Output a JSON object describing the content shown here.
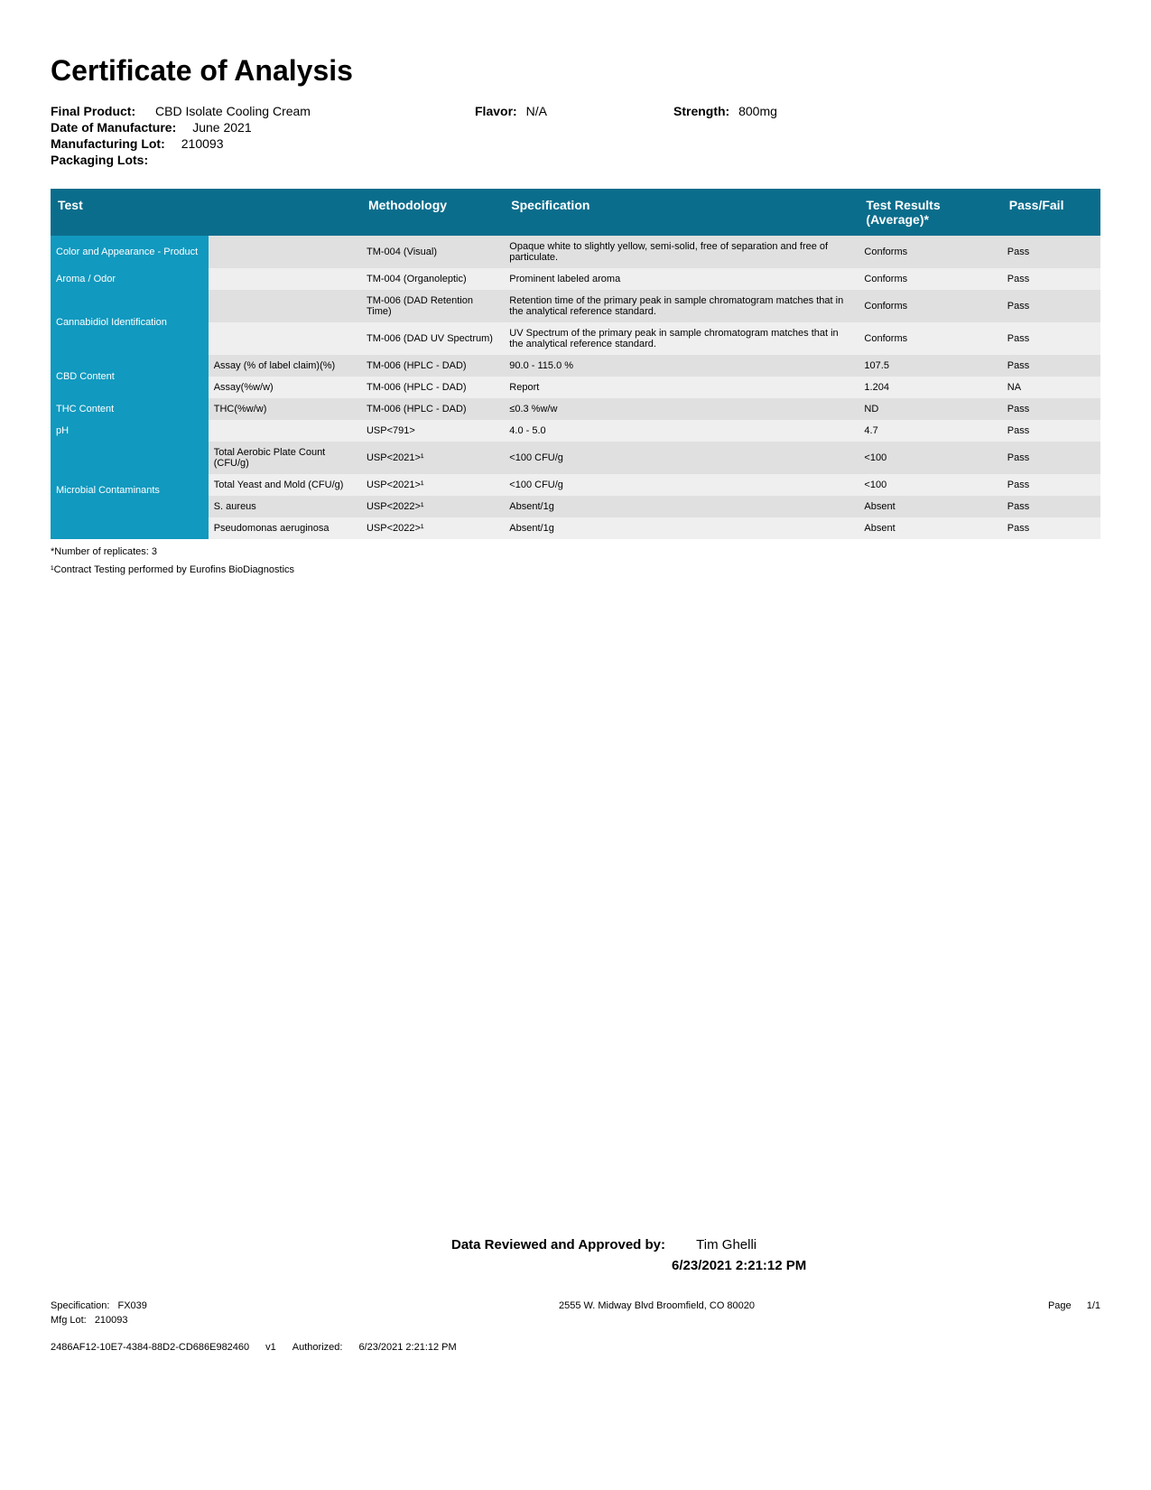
{
  "title": "Certificate of Analysis",
  "meta": {
    "final_product_label": "Final Product:",
    "final_product": "CBD Isolate Cooling Cream",
    "flavor_label": "Flavor:",
    "flavor": "N/A",
    "strength_label": "Strength:",
    "strength": "800mg",
    "dom_label": "Date of Manufacture:",
    "dom": "June 2021",
    "mfg_lot_label": "Manufacturing Lot:",
    "mfg_lot": "210093",
    "pkg_lots_label": "Packaging Lots:"
  },
  "headers": {
    "test": "Test",
    "methodology": "Methodology",
    "specification": "Specification",
    "result": "Test Results (Average)*",
    "passfail": "Pass/Fail"
  },
  "rows": [
    {
      "test": "Color and Appearance - Product",
      "sub": "",
      "meth": "TM-004 (Visual)",
      "spec": "Opaque white to slightly yellow, semi-solid, free of separation and free of particulate.",
      "res": "Conforms",
      "pf": "Pass",
      "shade": "dark",
      "rowspan": 1
    },
    {
      "test": "Aroma / Odor",
      "sub": "",
      "meth": "TM-004 (Organoleptic)",
      "spec": "Prominent labeled aroma",
      "res": "Conforms",
      "pf": "Pass",
      "shade": "light",
      "rowspan": 1
    },
    {
      "test": "Cannabidiol Identification",
      "sub": "",
      "meth": "TM-006 (DAD Retention Time)",
      "spec": "Retention time of the primary peak in sample chromatogram matches that in the analytical reference standard.",
      "res": "Conforms",
      "pf": "Pass",
      "shade": "dark",
      "rowspan": 2
    },
    {
      "test": "",
      "sub": "",
      "meth": "TM-006 (DAD UV Spectrum)",
      "spec": "UV Spectrum of the primary peak in sample chromatogram matches that in the analytical reference standard.",
      "res": "Conforms",
      "pf": "Pass",
      "shade": "light",
      "rowspan": 0
    },
    {
      "test": "CBD Content",
      "sub": "Assay (% of label claim)(%)",
      "meth": "TM-006 (HPLC - DAD)",
      "spec": "90.0 - 115.0 %",
      "res": "107.5",
      "pf": "Pass",
      "shade": "dark",
      "rowspan": 2
    },
    {
      "test": "",
      "sub": "Assay(%w/w)",
      "meth": "TM-006 (HPLC - DAD)",
      "spec": "Report",
      "res": "1.204",
      "pf": "NA",
      "shade": "light",
      "rowspan": 0
    },
    {
      "test": "THC Content",
      "sub": "THC(%w/w)",
      "meth": "TM-006 (HPLC - DAD)",
      "spec": "≤0.3 %w/w",
      "res": "ND",
      "pf": "Pass",
      "shade": "dark",
      "rowspan": 1
    },
    {
      "test": "pH",
      "sub": "",
      "meth": "USP<791>",
      "spec": "4.0 - 5.0",
      "res": "4.7",
      "pf": "Pass",
      "shade": "light",
      "rowspan": 1
    },
    {
      "test": "Microbial Contaminants",
      "sub": "Total Aerobic Plate Count (CFU/g)",
      "meth": "USP<2021>¹",
      "spec": "<100 CFU/g",
      "res": "<100",
      "pf": "Pass",
      "shade": "dark",
      "rowspan": 4
    },
    {
      "test": "",
      "sub": "Total Yeast and Mold (CFU/g)",
      "meth": "USP<2021>¹",
      "spec": "<100 CFU/g",
      "res": "<100",
      "pf": "Pass",
      "shade": "light",
      "rowspan": 0
    },
    {
      "test": "",
      "sub": "S. aureus",
      "meth": "USP<2022>¹",
      "spec": "Absent/1g",
      "res": "Absent",
      "pf": "Pass",
      "shade": "dark",
      "rowspan": 0
    },
    {
      "test": "",
      "sub": "Pseudomonas aeruginosa",
      "meth": "USP<2022>¹",
      "spec": "Absent/1g",
      "res": "Absent",
      "pf": "Pass",
      "shade": "light",
      "rowspan": 0
    }
  ],
  "notes": {
    "n1": "*Number of replicates: 3",
    "n2": "¹Contract Testing performed by Eurofins BioDiagnostics"
  },
  "approval": {
    "label": "Data Reviewed and Approved by:",
    "name": "Tim Ghelli",
    "date": "6/23/2021 2:21:12 PM"
  },
  "footer": {
    "spec_label": "Specification:",
    "spec": "FX039",
    "address": "2555 W. Midway Blvd Broomfield, CO 80020",
    "page_label": "Page",
    "page": "1/1",
    "mfg_lot_label": "Mfg Lot:",
    "mfg_lot": "210093",
    "doc_id": "2486AF12-10E7-4384-88D2-CD686E982460",
    "version": "v1",
    "auth_label": "Authorized:",
    "auth_date": "6/23/2021 2:21:12 PM"
  },
  "colors": {
    "header_bg": "#0b6d8c",
    "testcol_bg": "#1199bf",
    "row_dark": "#e0e0e0",
    "row_light": "#efefef"
  }
}
